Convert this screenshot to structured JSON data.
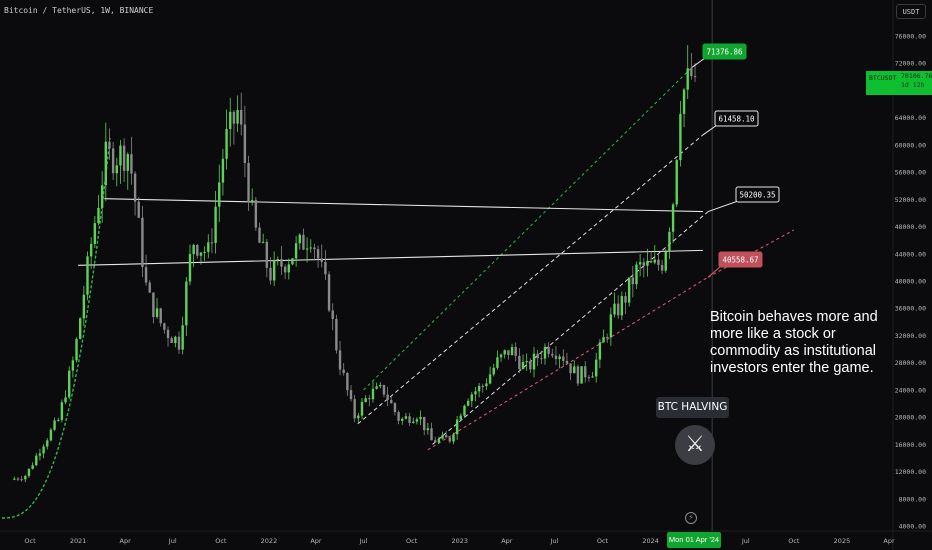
{
  "header": {
    "symbol_title": "Bitcoin / TetherUS, 1W, BINANCE"
  },
  "currency": "USDT",
  "price_tag": {
    "symbol": "BTCUSDT",
    "price": "70106.76",
    "countdown": "1d 12h"
  },
  "annotation": {
    "lines": [
      "Bitcoin behaves more and",
      "more like a stock or",
      "commodity as institutional",
      "investors enter the game."
    ]
  },
  "halving": {
    "label": "BTC HALVING",
    "icon": "crossed-swords-icon"
  },
  "time_badge": "Mon 01 Apr '24",
  "colors": {
    "up": "#5fd15a",
    "down": "#8a8a8a",
    "accent_green": "#1fae3a",
    "accent_red": "#e06070",
    "background": "#0b0b0d"
  },
  "chart_data": {
    "type": "candlestick",
    "ylim": [
      4000,
      79000
    ],
    "y_ticks": [
      4000,
      8000,
      12000,
      16000,
      20000,
      24000,
      28000,
      32000,
      36000,
      40000,
      44000,
      48000,
      52000,
      56000,
      60000,
      64000,
      68000,
      72000,
      76000
    ],
    "y_tick_labels": [
      "4000.00",
      "8000.00",
      "12000.00",
      "16000.00",
      "20000.00",
      "24000.00",
      "28000.00",
      "32000.00",
      "36000.00",
      "40000.00",
      "44000.00",
      "48000.00",
      "52000.00",
      "56000.00",
      "60000.00",
      "64000.00",
      "68000.00",
      "72000.00",
      "76000.00"
    ],
    "x_ticks": [
      "Oct",
      "2021",
      "Apr",
      "Jul",
      "Oct",
      "2022",
      "Apr",
      "Jul",
      "Oct",
      "2023",
      "Apr",
      "Jul",
      "Oct",
      "2024",
      "Apr",
      "Jul",
      "Oct",
      "2025",
      "Apr"
    ],
    "x_range": [
      "2020-09",
      "2025-05"
    ],
    "grid": false,
    "price_path": [
      [
        "2020-09-01",
        10800
      ],
      [
        "2020-10-01",
        11500
      ],
      [
        "2020-11-01",
        16000
      ],
      [
        "2020-12-01",
        19500
      ],
      [
        "2021-01-01",
        29000
      ],
      [
        "2021-02-01",
        45000
      ],
      [
        "2021-03-01",
        58000
      ],
      [
        "2021-04-15",
        59000
      ],
      [
        "2021-05-20",
        38000
      ],
      [
        "2021-06-20",
        33000
      ],
      [
        "2021-07-20",
        31000
      ],
      [
        "2021-08-15",
        46000
      ],
      [
        "2021-09-15",
        44000
      ],
      [
        "2021-10-15",
        60000
      ],
      [
        "2021-11-10",
        65000
      ],
      [
        "2021-12-10",
        48000
      ],
      [
        "2022-01-10",
        41000
      ],
      [
        "2022-02-10",
        43000
      ],
      [
        "2022-03-30",
        47000
      ],
      [
        "2022-05-01",
        38000
      ],
      [
        "2022-05-20",
        29000
      ],
      [
        "2022-06-20",
        20000
      ],
      [
        "2022-07-20",
        23500
      ],
      [
        "2022-08-15",
        24000
      ],
      [
        "2022-09-15",
        19500
      ],
      [
        "2022-10-20",
        20500
      ],
      [
        "2022-11-15",
        16500
      ],
      [
        "2022-12-20",
        16800
      ],
      [
        "2023-01-20",
        23000
      ],
      [
        "2023-02-20",
        24500
      ],
      [
        "2023-03-20",
        28000
      ],
      [
        "2023-04-15",
        30000
      ],
      [
        "2023-05-15",
        27000
      ],
      [
        "2023-06-25",
        30500
      ],
      [
        "2023-07-20",
        29500
      ],
      [
        "2023-08-20",
        26000
      ],
      [
        "2023-09-20",
        27000
      ],
      [
        "2023-10-25",
        34500
      ],
      [
        "2023-11-20",
        37500
      ],
      [
        "2023-12-15",
        42000
      ],
      [
        "2024-01-15",
        42000
      ],
      [
        "2024-02-01",
        43000
      ],
      [
        "2024-02-20",
        52000
      ],
      [
        "2024-03-05",
        67000
      ],
      [
        "2024-03-15",
        68500
      ],
      [
        "2024-03-25",
        70100
      ]
    ],
    "horizontal_lines": [
      50200.35,
      41900
    ],
    "price_labels": [
      {
        "text": "71376.86",
        "value": 71376.86,
        "style": "green"
      },
      {
        "text": "61458.10",
        "value": 61458.1,
        "style": "white"
      },
      {
        "text": "50200.35",
        "value": 50200.35,
        "style": "white"
      },
      {
        "text": "40558.67",
        "value": 40558.67,
        "style": "red"
      }
    ],
    "trend_lines": [
      {
        "style": "green-dashed",
        "from": [
          "2022-07-01",
          24000
        ],
        "to": [
          "2024-03-20",
          71376.86
        ]
      },
      {
        "style": "white-dashed",
        "from": [
          "2022-06-20",
          19000
        ],
        "to": [
          "2024-04-10",
          61458.1
        ]
      },
      {
        "style": "white-dashed",
        "from": [
          "2022-11-10",
          16000
        ],
        "to": [
          "2024-04-20",
          50200.35
        ]
      },
      {
        "style": "red-dashed",
        "from": [
          "2022-11-01",
          15200
        ],
        "to": [
          "2024-04-20",
          40558.67
        ]
      }
    ],
    "halving_date": "2024-04-01"
  }
}
